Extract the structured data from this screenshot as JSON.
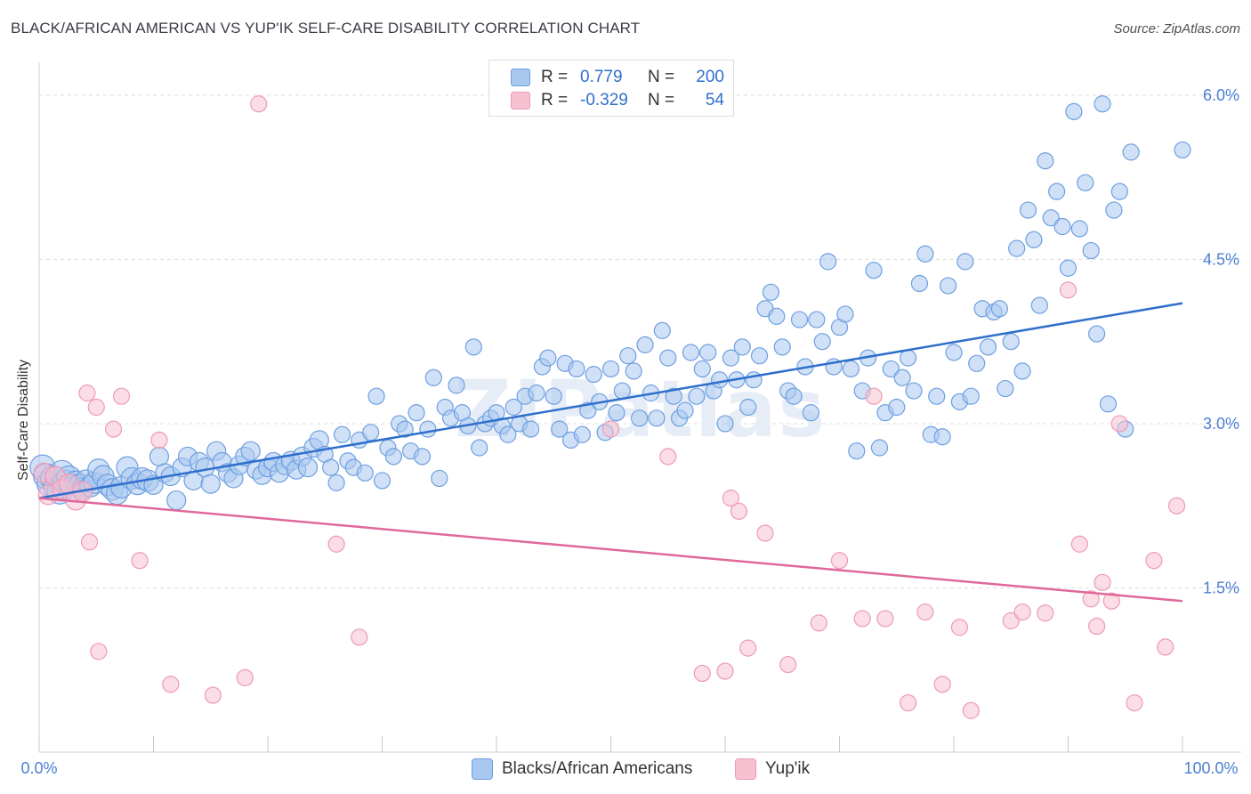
{
  "title": "BLACK/AFRICAN AMERICAN VS YUP'IK SELF-CARE DISABILITY CORRELATION CHART",
  "source": "Source: ZipAtlas.com",
  "watermark": "ZIPatlas",
  "legend": {
    "rows": [
      {
        "r_label": "R =",
        "r_value": "0.779",
        "n_label": "N =",
        "n_value": "200"
      },
      {
        "r_label": "R =",
        "r_value": "-0.329",
        "n_label": "N =",
        "n_value": "54"
      }
    ]
  },
  "bottom_legend": [
    "Blacks/African Americans",
    "Yup'ik"
  ],
  "colors": {
    "blue_fill": "#a9c8f0",
    "blue_stroke": "#6e9fe0",
    "blue_line": "#2f6fcc",
    "pink_fill": "#f7c1d1",
    "pink_stroke": "#ee9ab5",
    "pink_line": "#e0689a",
    "grid": "#dcdcdc",
    "tick_text": "#4a7fd4"
  },
  "chart_data": {
    "type": "scatter",
    "title": "BLACK/AFRICAN AMERICAN VS YUP'IK SELF-CARE DISABILITY CORRELATION CHART",
    "xlabel": "",
    "ylabel": "Self-Care Disability",
    "xlim": [
      0,
      100
    ],
    "ylim": [
      0,
      6.3
    ],
    "x_tick_labels": [
      "0.0%",
      "100.0%"
    ],
    "y_ticks": [
      1.5,
      3.0,
      4.5,
      6.0
    ],
    "y_tick_labels": [
      "1.5%",
      "3.0%",
      "4.5%",
      "6.0%"
    ],
    "grid": true,
    "legend_position": "top-center",
    "series": [
      {
        "name": "Blacks/African Americans",
        "r": 0.779,
        "n": 200,
        "trend": {
          "x": [
            0,
            100
          ],
          "y": [
            2.32,
            4.1
          ]
        },
        "points": [
          [
            0.3,
            2.6
          ],
          [
            0.6,
            2.52
          ],
          [
            0.9,
            2.45
          ],
          [
            1.2,
            2.5
          ],
          [
            1.5,
            2.42
          ],
          [
            1.8,
            2.38
          ],
          [
            2.0,
            2.55
          ],
          [
            2.3,
            2.46
          ],
          [
            2.6,
            2.5
          ],
          [
            2.9,
            2.4
          ],
          [
            3.2,
            2.47
          ],
          [
            3.5,
            2.44
          ],
          [
            3.8,
            2.41
          ],
          [
            4.1,
            2.48
          ],
          [
            4.5,
            2.43
          ],
          [
            4.8,
            2.46
          ],
          [
            5.2,
            2.58
          ],
          [
            5.6,
            2.52
          ],
          [
            6.0,
            2.44
          ],
          [
            6.4,
            2.4
          ],
          [
            6.8,
            2.36
          ],
          [
            7.2,
            2.42
          ],
          [
            7.7,
            2.6
          ],
          [
            8.1,
            2.5
          ],
          [
            8.6,
            2.45
          ],
          [
            9.0,
            2.5
          ],
          [
            9.5,
            2.48
          ],
          [
            10.0,
            2.44
          ],
          [
            10.5,
            2.7
          ],
          [
            11.0,
            2.55
          ],
          [
            11.5,
            2.52
          ],
          [
            12.0,
            2.3
          ],
          [
            12.5,
            2.6
          ],
          [
            13.0,
            2.7
          ],
          [
            13.5,
            2.48
          ],
          [
            14.0,
            2.65
          ],
          [
            14.5,
            2.6
          ],
          [
            15.0,
            2.45
          ],
          [
            15.5,
            2.75
          ],
          [
            16.0,
            2.65
          ],
          [
            16.5,
            2.55
          ],
          [
            17.0,
            2.5
          ],
          [
            17.5,
            2.62
          ],
          [
            18.0,
            2.7
          ],
          [
            18.5,
            2.75
          ],
          [
            19.0,
            2.58
          ],
          [
            19.5,
            2.53
          ],
          [
            20.0,
            2.6
          ],
          [
            20.5,
            2.65
          ],
          [
            21.0,
            2.55
          ],
          [
            21.5,
            2.62
          ],
          [
            22.0,
            2.66
          ],
          [
            22.5,
            2.58
          ],
          [
            23.0,
            2.7
          ],
          [
            23.5,
            2.6
          ],
          [
            24.0,
            2.78
          ],
          [
            24.5,
            2.85
          ],
          [
            25.0,
            2.72
          ],
          [
            25.5,
            2.6
          ],
          [
            26.0,
            2.46
          ],
          [
            26.5,
            2.9
          ],
          [
            27.0,
            2.66
          ],
          [
            27.5,
            2.6
          ],
          [
            28.0,
            2.85
          ],
          [
            28.5,
            2.55
          ],
          [
            29.0,
            2.92
          ],
          [
            29.5,
            3.25
          ],
          [
            30.0,
            2.48
          ],
          [
            30.5,
            2.78
          ],
          [
            31.0,
            2.7
          ],
          [
            31.5,
            3.0
          ],
          [
            32.0,
            2.95
          ],
          [
            32.5,
            2.75
          ],
          [
            33.0,
            3.1
          ],
          [
            33.5,
            2.7
          ],
          [
            34.0,
            2.95
          ],
          [
            34.5,
            3.42
          ],
          [
            35.0,
            2.5
          ],
          [
            35.5,
            3.15
          ],
          [
            36.0,
            3.05
          ],
          [
            36.5,
            3.35
          ],
          [
            37.0,
            3.1
          ],
          [
            37.5,
            2.98
          ],
          [
            38.0,
            3.7
          ],
          [
            38.5,
            2.78
          ],
          [
            39.0,
            3.0
          ],
          [
            39.5,
            3.05
          ],
          [
            40.0,
            3.1
          ],
          [
            40.5,
            2.98
          ],
          [
            41.0,
            2.9
          ],
          [
            41.5,
            3.15
          ],
          [
            42.0,
            3.0
          ],
          [
            42.5,
            3.25
          ],
          [
            43.0,
            2.95
          ],
          [
            43.5,
            3.28
          ],
          [
            44.0,
            3.52
          ],
          [
            44.5,
            3.6
          ],
          [
            45.0,
            3.25
          ],
          [
            45.5,
            2.95
          ],
          [
            46.0,
            3.55
          ],
          [
            46.5,
            2.85
          ],
          [
            47.0,
            3.5
          ],
          [
            47.5,
            2.9
          ],
          [
            48.0,
            3.12
          ],
          [
            48.5,
            3.45
          ],
          [
            49.0,
            3.2
          ],
          [
            49.5,
            2.92
          ],
          [
            50.0,
            3.5
          ],
          [
            50.5,
            3.1
          ],
          [
            51.0,
            3.3
          ],
          [
            51.5,
            3.62
          ],
          [
            52.0,
            3.48
          ],
          [
            52.5,
            3.05
          ],
          [
            53.0,
            3.72
          ],
          [
            53.5,
            3.28
          ],
          [
            54.0,
            3.05
          ],
          [
            54.5,
            3.85
          ],
          [
            55.0,
            3.6
          ],
          [
            55.5,
            3.25
          ],
          [
            56.0,
            3.05
          ],
          [
            56.5,
            3.12
          ],
          [
            57.0,
            3.65
          ],
          [
            57.5,
            3.25
          ],
          [
            58.0,
            3.5
          ],
          [
            58.5,
            3.65
          ],
          [
            59.0,
            3.3
          ],
          [
            59.5,
            3.4
          ],
          [
            60.0,
            3.0
          ],
          [
            60.5,
            3.6
          ],
          [
            61.0,
            3.4
          ],
          [
            61.5,
            3.7
          ],
          [
            62.0,
            3.15
          ],
          [
            62.5,
            3.4
          ],
          [
            63.0,
            3.62
          ],
          [
            63.5,
            4.05
          ],
          [
            64.0,
            4.2
          ],
          [
            64.5,
            3.98
          ],
          [
            65.0,
            3.7
          ],
          [
            65.5,
            3.3
          ],
          [
            66.0,
            3.25
          ],
          [
            66.5,
            3.95
          ],
          [
            67.0,
            3.52
          ],
          [
            67.5,
            3.1
          ],
          [
            68.0,
            3.95
          ],
          [
            68.5,
            3.75
          ],
          [
            69.0,
            4.48
          ],
          [
            69.5,
            3.52
          ],
          [
            70.0,
            3.88
          ],
          [
            70.5,
            4.0
          ],
          [
            71.0,
            3.5
          ],
          [
            71.5,
            2.75
          ],
          [
            72.0,
            3.3
          ],
          [
            72.5,
            3.6
          ],
          [
            73.0,
            4.4
          ],
          [
            73.5,
            2.78
          ],
          [
            74.0,
            3.1
          ],
          [
            74.5,
            3.5
          ],
          [
            75.0,
            3.15
          ],
          [
            75.5,
            3.42
          ],
          [
            76.0,
            3.6
          ],
          [
            76.5,
            3.3
          ],
          [
            77.0,
            4.28
          ],
          [
            77.5,
            4.55
          ],
          [
            78.0,
            2.9
          ],
          [
            78.5,
            3.25
          ],
          [
            79.0,
            2.88
          ],
          [
            79.5,
            4.26
          ],
          [
            80.0,
            3.65
          ],
          [
            80.5,
            3.2
          ],
          [
            81.0,
            4.48
          ],
          [
            81.5,
            3.25
          ],
          [
            82.0,
            3.55
          ],
          [
            82.5,
            4.05
          ],
          [
            83.0,
            3.7
          ],
          [
            83.5,
            4.02
          ],
          [
            84.0,
            4.05
          ],
          [
            84.5,
            3.32
          ],
          [
            85.0,
            3.75
          ],
          [
            85.5,
            4.6
          ],
          [
            86.0,
            3.48
          ],
          [
            86.5,
            4.95
          ],
          [
            87.0,
            4.68
          ],
          [
            87.5,
            4.08
          ],
          [
            88.0,
            5.4
          ],
          [
            88.5,
            4.88
          ],
          [
            89.0,
            5.12
          ],
          [
            89.5,
            4.8
          ],
          [
            90.0,
            4.42
          ],
          [
            90.5,
            5.85
          ],
          [
            91.0,
            4.78
          ],
          [
            91.5,
            5.2
          ],
          [
            92.0,
            4.58
          ],
          [
            92.5,
            3.82
          ],
          [
            93.0,
            5.92
          ],
          [
            93.5,
            3.18
          ],
          [
            94.0,
            4.95
          ],
          [
            94.5,
            5.12
          ],
          [
            95.0,
            2.95
          ],
          [
            95.5,
            5.48
          ],
          [
            100,
            5.5
          ]
        ]
      },
      {
        "name": "Yup'ik",
        "r": -0.329,
        "n": 54,
        "trend": {
          "x": [
            0,
            100
          ],
          "y": [
            2.32,
            1.38
          ]
        },
        "points": [
          [
            0.4,
            2.55
          ],
          [
            0.8,
            2.35
          ],
          [
            1.4,
            2.52
          ],
          [
            2.0,
            2.4
          ],
          [
            2.6,
            2.45
          ],
          [
            3.2,
            2.3
          ],
          [
            3.8,
            2.38
          ],
          [
            4.2,
            3.28
          ],
          [
            4.4,
            1.92
          ],
          [
            5.0,
            3.15
          ],
          [
            5.2,
            0.92
          ],
          [
            6.5,
            2.95
          ],
          [
            7.2,
            3.25
          ],
          [
            8.8,
            1.75
          ],
          [
            10.5,
            2.85
          ],
          [
            11.5,
            0.62
          ],
          [
            15.2,
            0.52
          ],
          [
            18.0,
            0.68
          ],
          [
            19.2,
            5.92
          ],
          [
            26.0,
            1.9
          ],
          [
            28.0,
            1.05
          ],
          [
            50.0,
            2.95
          ],
          [
            55.0,
            2.7
          ],
          [
            58.0,
            0.72
          ],
          [
            60.0,
            0.74
          ],
          [
            60.5,
            2.32
          ],
          [
            61.2,
            2.2
          ],
          [
            62.0,
            0.95
          ],
          [
            63.5,
            2.0
          ],
          [
            65.5,
            0.8
          ],
          [
            68.2,
            1.18
          ],
          [
            70.0,
            1.75
          ],
          [
            72.0,
            1.22
          ],
          [
            73.0,
            3.25
          ],
          [
            74.0,
            1.22
          ],
          [
            76.0,
            0.45
          ],
          [
            77.5,
            1.28
          ],
          [
            79.0,
            0.62
          ],
          [
            80.5,
            1.14
          ],
          [
            81.5,
            0.38
          ],
          [
            85.0,
            1.2
          ],
          [
            86.0,
            1.28
          ],
          [
            88.0,
            1.27
          ],
          [
            90.0,
            4.22
          ],
          [
            91.0,
            1.9
          ],
          [
            92.0,
            1.4
          ],
          [
            92.5,
            1.15
          ],
          [
            93.0,
            1.55
          ],
          [
            93.8,
            1.38
          ],
          [
            94.5,
            3.0
          ],
          [
            95.8,
            0.45
          ],
          [
            97.5,
            1.75
          ],
          [
            98.5,
            0.96
          ],
          [
            99.5,
            2.25
          ]
        ]
      }
    ]
  }
}
